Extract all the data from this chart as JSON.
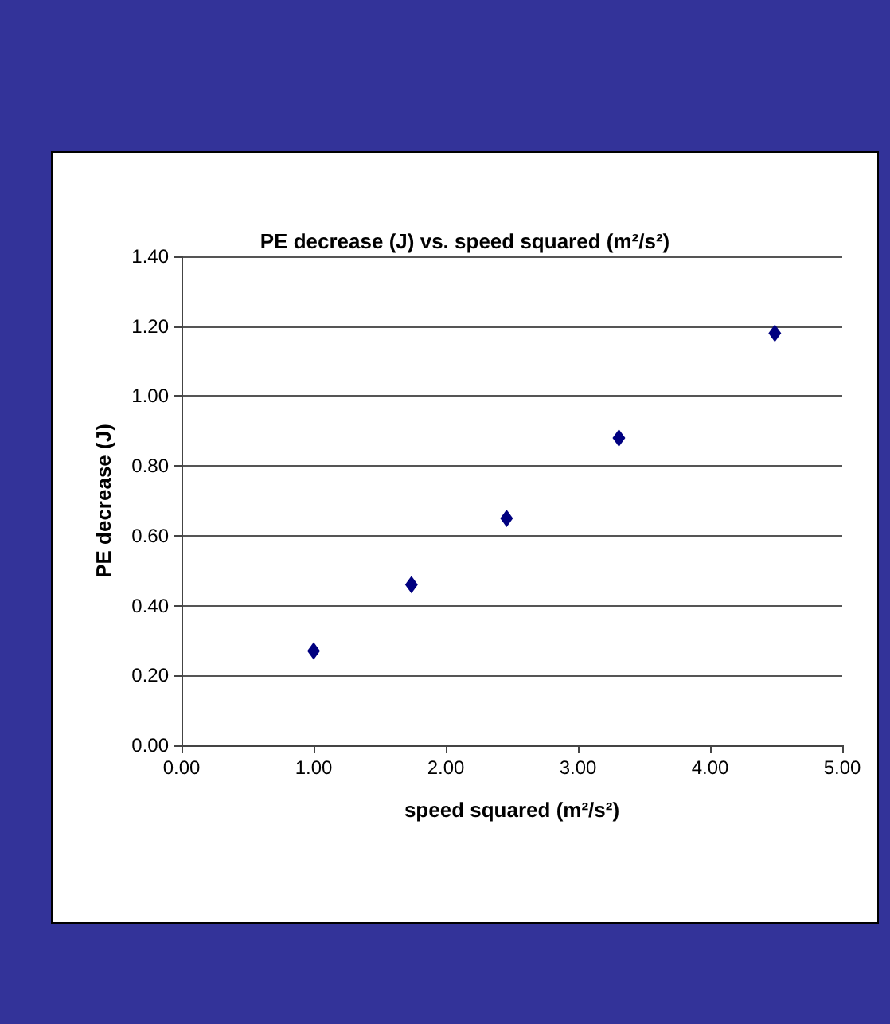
{
  "chart_data": {
    "type": "scatter",
    "title": "PE decrease (J) vs. speed squared (m²/s²)",
    "xlabel": "speed squared (m²/s²)",
    "ylabel": "PE decrease (J)",
    "x": [
      1.0,
      1.74,
      2.46,
      3.31,
      4.49
    ],
    "series": [
      {
        "color": "#000080",
        "values": [
          0.27,
          0.46,
          0.65,
          0.88,
          1.18
        ]
      }
    ],
    "xlim": [
      0,
      5
    ],
    "ylim": [
      0,
      1.4
    ],
    "xticks": [
      {
        "value": 0,
        "label": "0.00"
      },
      {
        "value": 1,
        "label": "1.00"
      },
      {
        "value": 2,
        "label": "2.00"
      },
      {
        "value": 3,
        "label": "3.00"
      },
      {
        "value": 4,
        "label": "4.00"
      },
      {
        "value": 5,
        "label": "5.00"
      }
    ],
    "yticks": [
      {
        "value": 0,
        "label": "0.00"
      },
      {
        "value": 0.2,
        "label": "0.20"
      },
      {
        "value": 0.4,
        "label": "0.40"
      },
      {
        "value": 0.6,
        "label": "0.60"
      },
      {
        "value": 0.8,
        "label": "0.80"
      },
      {
        "value": 1,
        "label": "1.00"
      },
      {
        "value": 1.2,
        "label": "1.20"
      },
      {
        "value": 1.4,
        "label": "1.40"
      }
    ],
    "grid": "y",
    "marker": "diamond"
  }
}
